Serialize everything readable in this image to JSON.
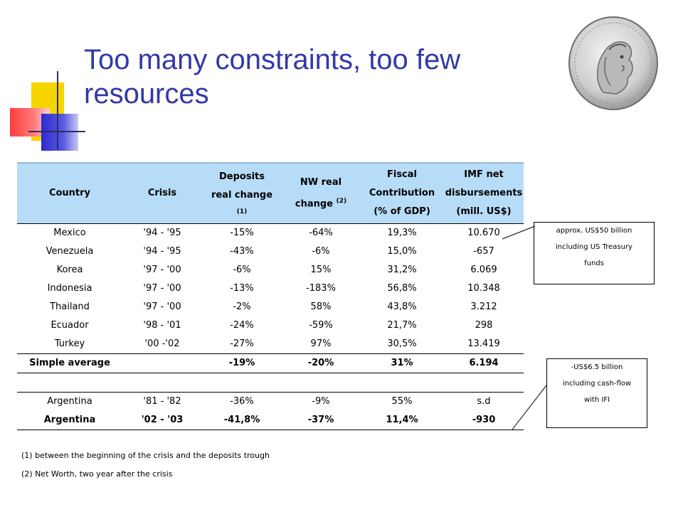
{
  "title": "Too many constraints, too few resources",
  "colors": {
    "title": "#3338a8",
    "header_bg": "#b7dcf8",
    "accent_yellow": "#f6d400",
    "accent_red": "#ff3b3b",
    "accent_blue": "#2b2bcf"
  },
  "logo": {
    "name": "coin-seal-icon"
  },
  "table": {
    "headers": {
      "country": "Country",
      "crisis": "Crisis",
      "deposits_l1": "Deposits",
      "deposits_l2": "real change",
      "deposits_note": "(1)",
      "nw_l1": "NW real",
      "nw_l2": "change",
      "nw_note": "(2)",
      "fiscal_l1": "Fiscal",
      "fiscal_l2": "Contribution",
      "fiscal_l3": "(% of GDP)",
      "imf_l1": "IMF net",
      "imf_l2": "disbursements",
      "imf_l3": "(mill. US$)"
    },
    "rows": [
      [
        "Mexico",
        "'94 - '95",
        "-15%",
        "-64%",
        "19,3%",
        "10.670"
      ],
      [
        "Venezuela",
        "'94 - '95",
        "-43%",
        "-6%",
        "15,0%",
        "-657"
      ],
      [
        "Korea",
        "'97 - '00",
        "-6%",
        "15%",
        "31,2%",
        "6.069"
      ],
      [
        "Indonesia",
        "'97 - '00",
        "-13%",
        "-183%",
        "56,8%",
        "10.348"
      ],
      [
        "Thailand",
        "'97 - '00",
        "-2%",
        "58%",
        "43,8%",
        "3.212"
      ],
      [
        "Ecuador",
        "'98 - '01",
        "-24%",
        "-59%",
        "21,7%",
        "298"
      ],
      [
        "Turkey",
        "'00 -'02",
        "-27%",
        "97%",
        "30,5%",
        "13.419"
      ]
    ],
    "average": [
      "Simple average",
      "",
      "-19%",
      "-20%",
      "31%",
      "6.194"
    ],
    "argentina": [
      [
        "Argentina",
        "'81 - '82",
        "-36%",
        "-9%",
        "55%",
        "s.d"
      ],
      [
        "Argentina",
        "'02 - '03",
        "-41,8%",
        "-37%",
        "11,4%",
        "-930"
      ]
    ]
  },
  "footnotes": {
    "one": "(1) between the beginning of the crisis and the deposits trough",
    "two": "(2) Net Worth, two year after the crisis"
  },
  "callouts": {
    "mexico": [
      "approx. US$50 billion",
      "including US Treasury",
      "funds"
    ],
    "argentina": [
      "-US$6.5 billion",
      "including cash-flow",
      "with IFI"
    ]
  }
}
